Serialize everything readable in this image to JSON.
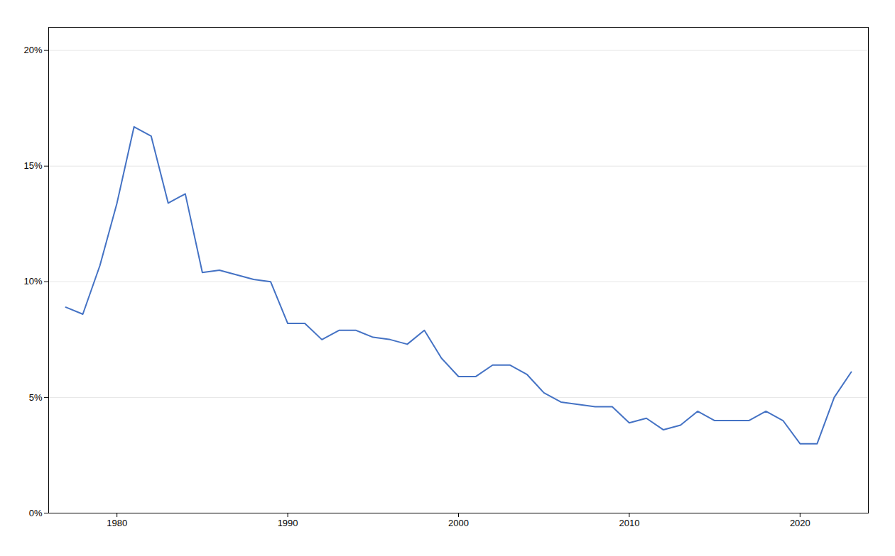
{
  "chart_data": {
    "type": "line",
    "x": [
      1977,
      1978,
      1979,
      1980,
      1981,
      1982,
      1983,
      1984,
      1985,
      1986,
      1987,
      1988,
      1989,
      1990,
      1991,
      1992,
      1993,
      1994,
      1995,
      1996,
      1997,
      1998,
      1999,
      2000,
      2001,
      2002,
      2003,
      2004,
      2005,
      2006,
      2007,
      2008,
      2009,
      2010,
      2011,
      2012,
      2013,
      2014,
      2015,
      2016,
      2017,
      2018,
      2019,
      2020,
      2021,
      2022,
      2023
    ],
    "values": [
      0.089,
      0.086,
      0.107,
      0.134,
      0.167,
      0.163,
      0.134,
      0.138,
      0.104,
      0.105,
      0.103,
      0.101,
      0.1,
      0.082,
      0.082,
      0.075,
      0.079,
      0.079,
      0.076,
      0.075,
      0.073,
      0.079,
      0.067,
      0.059,
      0.059,
      0.064,
      0.064,
      0.06,
      0.052,
      0.048,
      0.047,
      0.046,
      0.046,
      0.039,
      0.041,
      0.036,
      0.038,
      0.044,
      0.04,
      0.04,
      0.04,
      0.044,
      0.04,
      0.03,
      0.03,
      0.05,
      0.061
    ],
    "color": "#4472c4",
    "xlim": [
      1976,
      2024
    ],
    "xticks": [
      1980,
      1990,
      2000,
      2010,
      2020
    ],
    "ylim": [
      0.0,
      0.21
    ],
    "yticks": [
      {
        "value": 0.0,
        "label": "0%"
      },
      {
        "value": 0.05,
        "label": "5%"
      },
      {
        "value": 0.1,
        "label": "10%"
      },
      {
        "value": 0.15,
        "label": "15%"
      },
      {
        "value": 0.2,
        "label": "20%"
      }
    ],
    "grid": "y"
  }
}
